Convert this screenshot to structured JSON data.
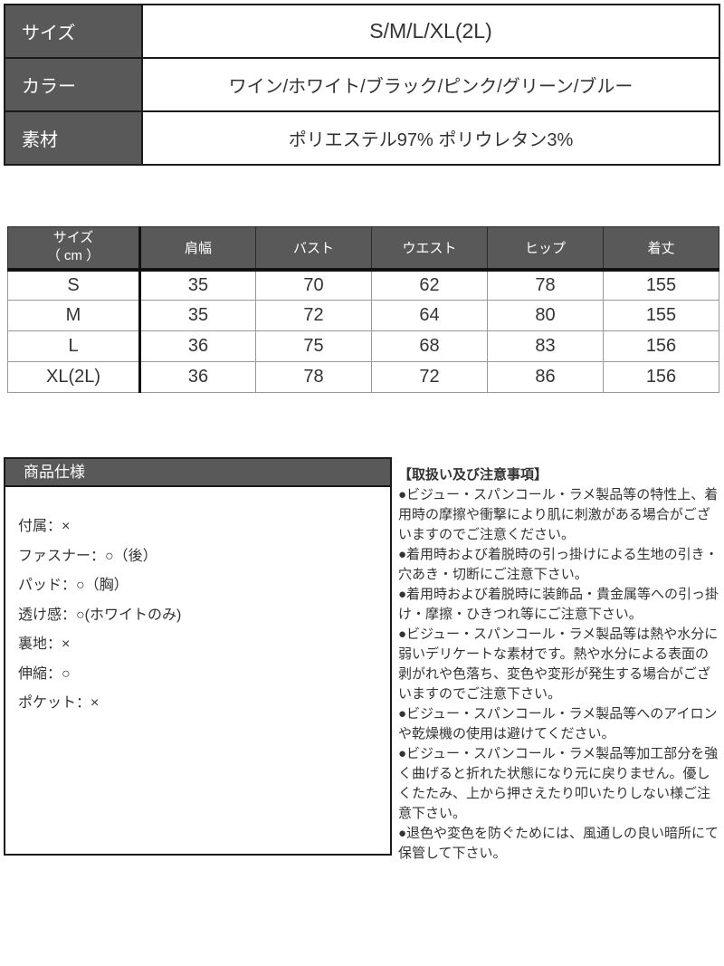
{
  "colors": {
    "header_bg": "#595959",
    "border_dark": "#1a1a1a",
    "border_light": "#999999",
    "text": "#333333"
  },
  "spec_table": {
    "rows": [
      {
        "label": "サイズ",
        "value": "S/M/L/XL(2L)"
      },
      {
        "label": "カラー",
        "value": "ワイン/ホワイト/ブラック/ピンク/グリーン/ブルー"
      },
      {
        "label": "素材",
        "value": "ポリエステル97% ポリウレタン3%"
      }
    ]
  },
  "size_chart": {
    "corner_line1": "サイズ",
    "corner_line2": "（ cm ）",
    "columns": [
      "肩幅",
      "バスト",
      "ウエスト",
      "ヒップ",
      "着丈"
    ],
    "rows": [
      {
        "size": "S",
        "values": [
          "35",
          "70",
          "62",
          "78",
          "155"
        ]
      },
      {
        "size": "M",
        "values": [
          "35",
          "72",
          "64",
          "80",
          "155"
        ]
      },
      {
        "size": "L",
        "values": [
          "36",
          "75",
          "68",
          "83",
          "156"
        ]
      },
      {
        "size": "XL(2L)",
        "values": [
          "36",
          "78",
          "72",
          "86",
          "156"
        ]
      }
    ]
  },
  "product_spec": {
    "title": "商品仕様",
    "lines": [
      "付属：×",
      "ファスナー：○（後）",
      "パッド：○（胸）",
      "透け感：○(ホワイトのみ)",
      "裏地：×",
      "伸縮：○",
      "ポケット：×"
    ]
  },
  "notes": {
    "title": "【取扱い及び注意事項】",
    "items": [
      "●ビジュー・スパンコール・ラメ製品等の特性上、着用時の摩擦や衝撃により肌に刺激がある場合がございますのでご注意ください。",
      "●着用時および着脱時の引っ掛けによる生地の引き・穴あき・切断にご注意下さい。",
      "●着用時および着脱時に装飾品・貴金属等への引っ掛け・摩擦・ひきつれ等にご注意下さい。",
      "●ビジュー・スパンコール・ラメ製品等は熱や水分に弱いデリケートな素材です。熱や水分による表面の剥がれや色落ち、変色や変形が発生する場合がございますのでご注意下さい。",
      "●ビジュー・スパンコール・ラメ製品等へのアイロンや乾燥機の使用は避けてください。",
      "●ビジュー・スパンコール・ラメ製品等加工部分を強く曲げると折れた状態になり元に戻りません。優しくたたみ、上から押さえたり叩いたりしない様ご注意下さい。",
      "●退色や変色を防ぐためには、風通しの良い暗所にて保管して下さい。"
    ]
  }
}
